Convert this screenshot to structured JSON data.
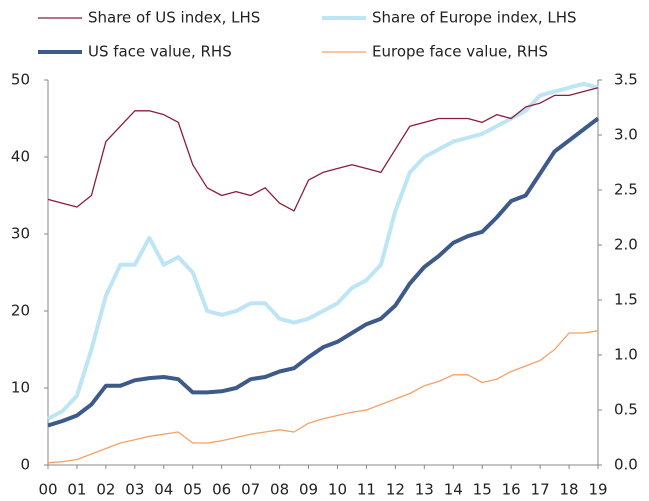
{
  "chart_data": {
    "type": "line",
    "x": [
      0,
      0.5,
      1,
      1.5,
      2,
      2.5,
      3,
      3.5,
      4,
      4.5,
      5,
      5.5,
      6,
      6.5,
      7,
      7.5,
      8,
      8.5,
      9,
      9.5,
      10,
      10.5,
      11,
      11.5,
      12,
      12.5,
      13,
      13.5,
      14,
      14.5,
      15,
      15.5,
      16,
      16.5,
      17,
      17.5,
      18,
      18.5,
      19
    ],
    "xlim": [
      0,
      19
    ],
    "xticks": [
      {
        "value": 0,
        "label": "00"
      },
      {
        "value": 1,
        "label": "01"
      },
      {
        "value": 2,
        "label": "02"
      },
      {
        "value": 3,
        "label": "03"
      },
      {
        "value": 4,
        "label": "04"
      },
      {
        "value": 5,
        "label": "05"
      },
      {
        "value": 6,
        "label": "06"
      },
      {
        "value": 7,
        "label": "07"
      },
      {
        "value": 8,
        "label": "08"
      },
      {
        "value": 9,
        "label": "09"
      },
      {
        "value": 10,
        "label": "10"
      },
      {
        "value": 11,
        "label": "11"
      },
      {
        "value": 12,
        "label": "12"
      },
      {
        "value": 13,
        "label": "13"
      },
      {
        "value": 14,
        "label": "14"
      },
      {
        "value": 15,
        "label": "15"
      },
      {
        "value": 16,
        "label": "16"
      },
      {
        "value": 17,
        "label": "17"
      },
      {
        "value": 18,
        "label": "18"
      },
      {
        "value": 19,
        "label": "19"
      }
    ],
    "ylim": [
      0,
      50
    ],
    "yticks": [
      0,
      10,
      20,
      30,
      40,
      50
    ],
    "y2lim": [
      0,
      3.5
    ],
    "y2ticks": [
      {
        "value": 0,
        "label": "0.0"
      },
      {
        "value": 0.5,
        "label": "0.5"
      },
      {
        "value": 1,
        "label": "1.0"
      },
      {
        "value": 1.5,
        "label": "1.5"
      },
      {
        "value": 2,
        "label": "2.0"
      },
      {
        "value": 2.5,
        "label": "2.5"
      },
      {
        "value": 3,
        "label": "3.0"
      },
      {
        "value": 3.5,
        "label": "3.5"
      }
    ],
    "series": [
      {
        "name": "Share of US index, LHS",
        "color": "#8c1c3c",
        "width": 1.3,
        "values": [
          34.5,
          34,
          33.5,
          35,
          42,
          44,
          46,
          46,
          45.5,
          44.5,
          39,
          36,
          35,
          35.5,
          35,
          36,
          34,
          33,
          37,
          38,
          38.5,
          39,
          38.5,
          38,
          41,
          44,
          44.5,
          45,
          45,
          45,
          44.5,
          45.5,
          45,
          46.5,
          47,
          48,
          48,
          48.5,
          49
        ]
      },
      {
        "name": "Share of Europe index, LHS",
        "color": "#bde5f5",
        "width": 4,
        "values": [
          6,
          7,
          9,
          15,
          22,
          26,
          26,
          29.5,
          26,
          27,
          25,
          20,
          19.5,
          20,
          21,
          21,
          19,
          18.5,
          19,
          20,
          21,
          23,
          24,
          26,
          33,
          38,
          40,
          41,
          42,
          42.5,
          43,
          44,
          45,
          46,
          48,
          48.5,
          49,
          49.5,
          49
        ]
      },
      {
        "name": "US face value, RHS",
        "color": "#3d5a8a",
        "width": 4,
        "axis": "y2",
        "values": [
          0.36,
          0.4,
          0.45,
          0.55,
          0.72,
          0.72,
          0.77,
          0.79,
          0.8,
          0.78,
          0.66,
          0.66,
          0.67,
          0.7,
          0.78,
          0.8,
          0.85,
          0.88,
          0.98,
          1.07,
          1.12,
          1.2,
          1.28,
          1.33,
          1.45,
          1.65,
          1.8,
          1.9,
          2.02,
          2.08,
          2.12,
          2.25,
          2.4,
          2.45,
          2.65,
          2.85,
          2.95,
          3.05,
          3.15
        ]
      },
      {
        "name": "Europe face value, RHS",
        "color": "#f4a266",
        "width": 1.3,
        "axis": "y2",
        "values": [
          0.02,
          0.03,
          0.05,
          0.1,
          0.15,
          0.2,
          0.23,
          0.26,
          0.28,
          0.3,
          0.2,
          0.2,
          0.22,
          0.25,
          0.28,
          0.3,
          0.32,
          0.3,
          0.38,
          0.42,
          0.45,
          0.48,
          0.5,
          0.55,
          0.6,
          0.65,
          0.72,
          0.76,
          0.82,
          0.82,
          0.75,
          0.78,
          0.85,
          0.9,
          0.95,
          1.05,
          1.2,
          1.2,
          1.22
        ]
      }
    ]
  }
}
